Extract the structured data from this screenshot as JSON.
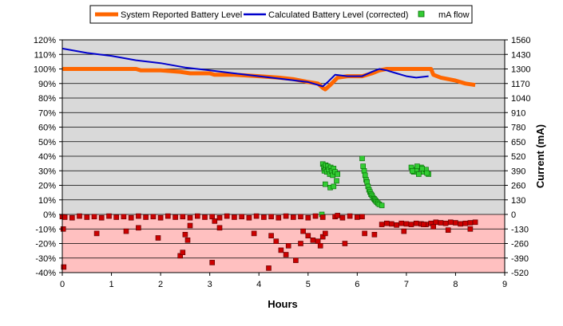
{
  "chart_data": {
    "type": "line",
    "title": "",
    "xlabel": "Hours",
    "ylabel": "",
    "y2label": "Current (mA)",
    "xlim": [
      0,
      9
    ],
    "ylim": [
      -40,
      120
    ],
    "y2lim": [
      -520,
      1560
    ],
    "x_ticks": [
      0,
      1,
      2,
      3,
      4,
      5,
      6,
      7,
      8,
      9
    ],
    "y_ticks": [
      "-40%",
      "-30%",
      "-20%",
      "-10%",
      "0%",
      "10%",
      "20%",
      "30%",
      "40%",
      "50%",
      "60%",
      "70%",
      "80%",
      "90%",
      "100%",
      "110%",
      "120%"
    ],
    "y2_ticks": [
      "-520",
      "-390",
      "-260",
      "-130",
      "0",
      "130",
      "260",
      "390",
      "520",
      "650",
      "780",
      "910",
      "1040",
      "1170",
      "1300",
      "1430",
      "1560"
    ],
    "grid": true,
    "legend_position": "top",
    "background_bands": [
      {
        "from": 0,
        "to": 120,
        "color": "#d9d9d9"
      },
      {
        "from": -40,
        "to": 0,
        "color": "#ffc0c0"
      }
    ],
    "series": [
      {
        "name": "System Reported Battery Level",
        "style": "line",
        "color": "#ff6600",
        "axis": "left",
        "x": [
          0,
          0.5,
          1,
          1.5,
          1.6,
          2,
          2.4,
          2.6,
          3,
          3.1,
          3.5,
          4,
          4.4,
          4.7,
          5,
          5.2,
          5.3,
          5.35,
          5.45,
          5.6,
          5.8,
          6.1,
          6.3,
          6.45,
          6.6,
          7,
          7.3,
          7.5,
          7.55,
          7.7,
          8,
          8.2,
          8.4
        ],
        "values": [
          100,
          100,
          100,
          100,
          99,
          99,
          98,
          97,
          97,
          96,
          96,
          95,
          94,
          93,
          91,
          90,
          87,
          86,
          89,
          94,
          95,
          95,
          97,
          99,
          100,
          100,
          100,
          100,
          96,
          94,
          92,
          90,
          89
        ]
      },
      {
        "name": "Calculated Battery Level (corrected)",
        "style": "line",
        "color": "#0000cc",
        "axis": "left",
        "x": [
          0,
          0.5,
          1,
          1.5,
          2,
          2.5,
          3,
          3.5,
          4,
          4.5,
          5,
          5.2,
          5.3,
          5.4,
          5.55,
          5.8,
          6.1,
          6.3,
          6.45,
          6.6,
          6.8,
          7,
          7.2,
          7.45
        ],
        "values": [
          114,
          111,
          109,
          106,
          104,
          101,
          99,
          97,
          95,
          93,
          91,
          89,
          88,
          91,
          96,
          95,
          95,
          98,
          100,
          99,
          97,
          95,
          94,
          95
        ]
      },
      {
        "name": "mA flow",
        "style": "scatter",
        "color": "#33cc33",
        "axis": "right",
        "x": [
          5.3,
          5.32,
          5.33,
          5.35,
          5.36,
          5.38,
          5.4,
          5.42,
          5.44,
          5.46,
          5.48,
          5.5,
          5.52,
          5.55,
          5.58,
          5.6,
          5.35,
          5.45,
          5.52,
          5.28,
          6.1,
          6.12,
          6.14,
          6.16,
          6.18,
          6.2,
          6.22,
          6.24,
          6.26,
          6.28,
          6.3,
          6.32,
          6.34,
          6.36,
          6.38,
          6.4,
          6.42,
          6.45,
          6.5,
          7.1,
          7.15,
          7.2,
          7.25,
          7.3,
          7.35,
          7.4,
          7.45,
          7.12,
          7.22,
          7.32,
          7.42
        ],
        "values": [
          450,
          420,
          390,
          410,
          440,
          380,
          430,
          400,
          360,
          420,
          390,
          350,
          410,
          380,
          300,
          360,
          270,
          240,
          250,
          0,
          500,
          430,
          390,
          350,
          310,
          290,
          250,
          220,
          200,
          180,
          170,
          150,
          140,
          130,
          120,
          110,
          100,
          90,
          80,
          420,
          380,
          400,
          360,
          420,
          380,
          400,
          360,
          390,
          430,
          410,
          370
        ]
      },
      {
        "name": "",
        "style": "scatter",
        "color": "#cc0000",
        "axis": "right",
        "x": [
          0.0,
          0.05,
          0.2,
          0.35,
          0.5,
          0.65,
          0.8,
          0.95,
          1.1,
          1.25,
          1.4,
          1.55,
          1.7,
          1.85,
          2.0,
          2.15,
          2.3,
          2.45,
          2.6,
          2.75,
          2.9,
          3.05,
          3.2,
          3.35,
          3.5,
          3.65,
          3.8,
          3.95,
          4.1,
          4.25,
          4.4,
          4.55,
          4.7,
          4.85,
          5.0,
          5.15,
          5.3,
          5.55,
          5.7,
          5.85,
          6.0,
          6.1,
          6.5,
          6.6,
          6.7,
          6.8,
          6.9,
          7.0,
          7.1,
          7.2,
          7.3,
          7.4,
          7.5,
          7.6,
          7.7,
          7.8,
          7.9,
          8.0,
          8.1,
          8.2,
          8.3,
          8.4,
          0.02,
          0.03,
          0.7,
          1.3,
          1.55,
          1.95,
          2.4,
          2.45,
          2.55,
          2.5,
          2.6,
          3.05,
          3.1,
          3.2,
          3.9,
          4.2,
          4.25,
          4.35,
          4.45,
          4.55,
          4.6,
          4.75,
          4.85,
          4.9,
          5.0,
          5.1,
          5.2,
          5.25,
          5.3,
          5.35,
          5.6,
          5.75,
          6.15,
          6.35,
          6.95,
          7.35,
          7.55,
          7.85,
          8.3
        ],
        "values": [
          -20,
          -25,
          -30,
          -15,
          -25,
          -20,
          -30,
          -15,
          -25,
          -20,
          -30,
          -15,
          -25,
          -20,
          -30,
          -15,
          -25,
          -20,
          -30,
          -15,
          -25,
          -20,
          -30,
          -15,
          -25,
          -20,
          -30,
          -15,
          -25,
          -20,
          -30,
          -15,
          -25,
          -20,
          -30,
          -15,
          -25,
          -20,
          -30,
          -15,
          -25,
          -20,
          -90,
          -80,
          -85,
          -95,
          -80,
          -85,
          -90,
          -80,
          -85,
          -90,
          -80,
          -70,
          -75,
          -80,
          -70,
          -75,
          -85,
          -80,
          -75,
          -70,
          -130,
          -470,
          -170,
          -150,
          -120,
          -210,
          -370,
          -340,
          -230,
          -180,
          -100,
          -430,
          -60,
          -120,
          -170,
          -480,
          -190,
          -240,
          -320,
          -360,
          -280,
          -410,
          -260,
          -150,
          -190,
          -230,
          -240,
          -280,
          -200,
          -170,
          -10,
          -260,
          -170,
          -180,
          -150,
          -90,
          -110,
          -140,
          -130
        ]
      }
    ]
  }
}
